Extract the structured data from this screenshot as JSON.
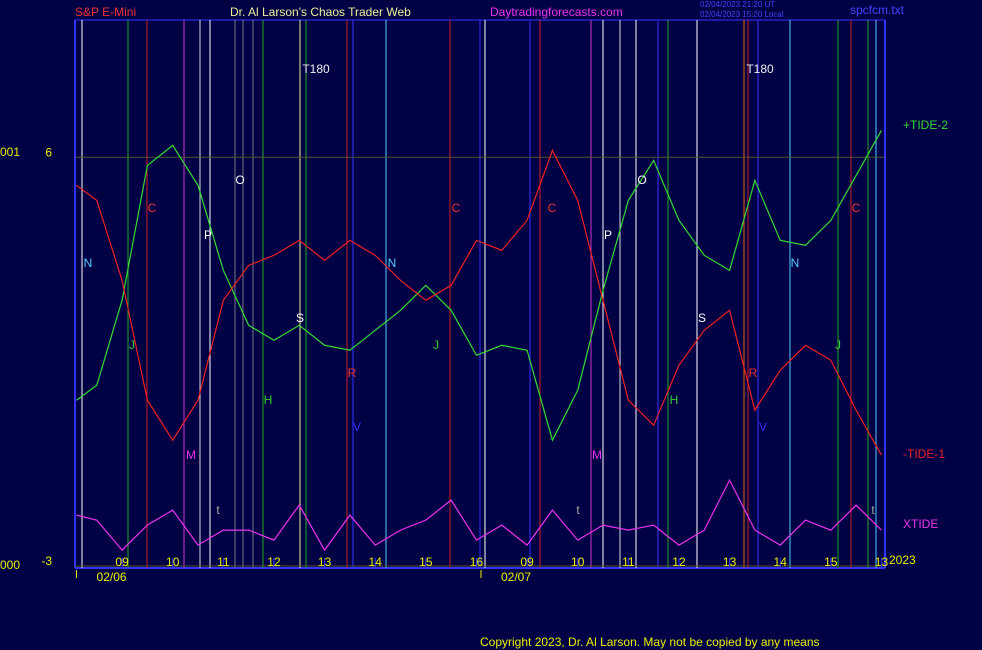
{
  "header": {
    "instrument": "S&P E-Mini",
    "title": "Dr. Al Larson's Chaos Trader Web",
    "site": "Daytradingforecasts.com",
    "stamp_ut": "02/04/2023 21:20 UT",
    "stamp_local": "02/04/2023 15:20 Local",
    "file": "spcfcm.txt"
  },
  "left_labels": [
    "001",
    "000"
  ],
  "footer": {
    "year": "2023",
    "copyright": "Copyright 2023, Dr. Al Larson. May not be copied by any means"
  },
  "chart_data": {
    "type": "line",
    "annotations": [
      "N",
      "C",
      "J",
      "M",
      "P",
      "O",
      "H",
      "S",
      "R",
      "V",
      "N",
      "C",
      "J",
      "t",
      "T180",
      "C",
      "P",
      "O",
      "M",
      "H",
      "S",
      "R",
      "V",
      "N",
      "C",
      "J",
      "t",
      "t",
      "T180"
    ],
    "x": [
      8.1,
      8.5,
      9,
      9.5,
      10,
      10.5,
      11,
      11.5,
      12,
      12.5,
      13,
      13.5,
      14,
      14.5,
      15,
      15.5,
      16,
      16.5,
      17,
      17.5,
      18,
      18.5,
      19,
      19.5,
      20,
      20.5,
      21,
      21.5,
      22,
      22.5,
      23,
      23.5,
      24
    ],
    "series": [
      {
        "name": "+TIDE-2",
        "color": "#33dd33",
        "values": [
          0.65,
          0.98,
          2.85,
          5.82,
          6.26,
          5.38,
          3.51,
          2.3,
          1.97,
          2.3,
          1.86,
          1.75,
          2.19,
          2.63,
          3.18,
          2.63,
          1.64,
          1.86,
          1.75,
          -0.23,
          0.87,
          3.07,
          5.05,
          5.93,
          4.61,
          3.84,
          3.51,
          5.49,
          4.17,
          4.06,
          4.61,
          5.6,
          6.59
        ]
      },
      {
        "name": "-TIDE-1",
        "color": "#ee2222",
        "values": [
          5.38,
          5.05,
          3.29,
          0.65,
          -0.23,
          0.65,
          2.85,
          3.62,
          3.84,
          4.17,
          3.73,
          4.17,
          3.84,
          3.29,
          2.85,
          3.18,
          4.17,
          3.95,
          4.61,
          6.15,
          5.05,
          2.85,
          0.65,
          0.1,
          1.42,
          2.19,
          2.63,
          0.43,
          1.31,
          1.86,
          1.53,
          0.43,
          -0.56
        ]
      },
      {
        "name": "XTIDE",
        "color": "#ee33ee",
        "values": [
          -1.88,
          -1.99,
          -2.65,
          -2.1,
          -1.77,
          -2.54,
          -2.21,
          -2.21,
          -2.43,
          -1.66,
          -2.65,
          -1.88,
          -2.54,
          -2.21,
          -1.99,
          -1.55,
          -2.43,
          -2.1,
          -2.54,
          -1.77,
          -2.43,
          -2.1,
          -2.21,
          -2.1,
          -2.54,
          -2.21,
          -1.11,
          -2.21,
          -2.54,
          -1.99,
          -2.21,
          -1.66,
          -2.21
        ]
      }
    ],
    "xlim": [
      8.07,
      24.07
    ],
    "xticks": [
      {
        "value": 9,
        "label": "09"
      },
      10,
      11,
      12,
      13,
      14,
      15,
      16,
      {
        "value": 17,
        "label": "09"
      },
      {
        "value": 18,
        "label": "10"
      },
      {
        "value": 19,
        "label": "11"
      },
      {
        "value": 20,
        "label": "12"
      },
      {
        "value": 21,
        "label": "13"
      },
      {
        "value": 22,
        "label": "14"
      },
      {
        "value": 23,
        "label": "15"
      },
      {
        "value": 24,
        "label": "13"
      }
    ],
    "date_ticks": [
      {
        "value": 8.1,
        "label": "02/06"
      },
      {
        "value": 16.09,
        "label": "02/07"
      }
    ],
    "ylim": [
      -3,
      9
    ],
    "yticks": [
      -3,
      6
    ],
    "grid": true
  }
}
